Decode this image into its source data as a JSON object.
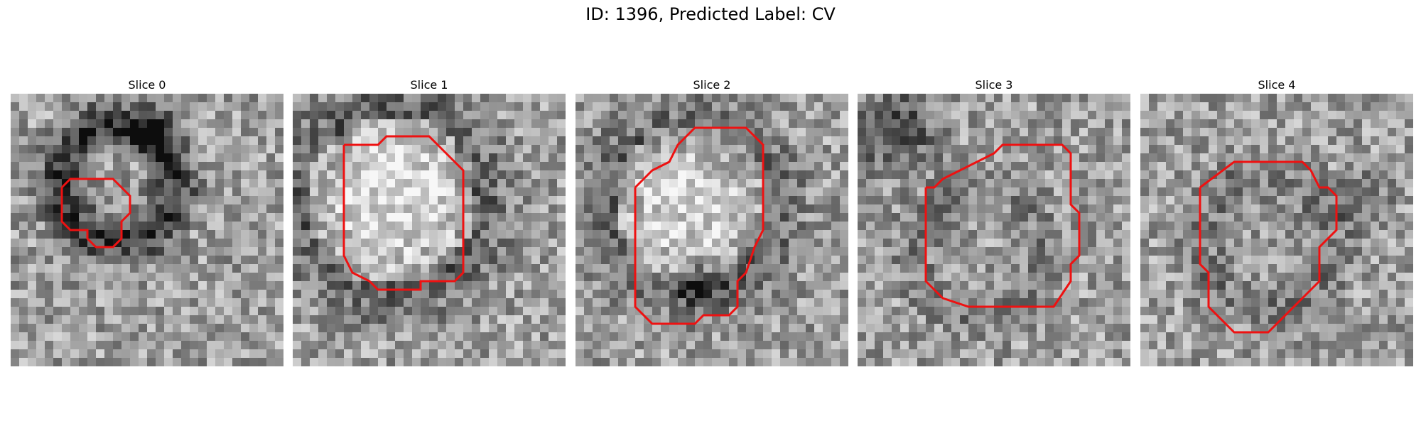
{
  "figure": {
    "title": "ID: 1396, Predicted Label: CV"
  },
  "slices": [
    {
      "title": "Slice 0"
    },
    {
      "title": "Slice 1"
    },
    {
      "title": "Slice 2"
    },
    {
      "title": "Slice 3"
    },
    {
      "title": "Slice 4"
    }
  ],
  "colors": {
    "contour": "#ee1111",
    "background": "#ffffff",
    "colormap": "gray"
  }
}
